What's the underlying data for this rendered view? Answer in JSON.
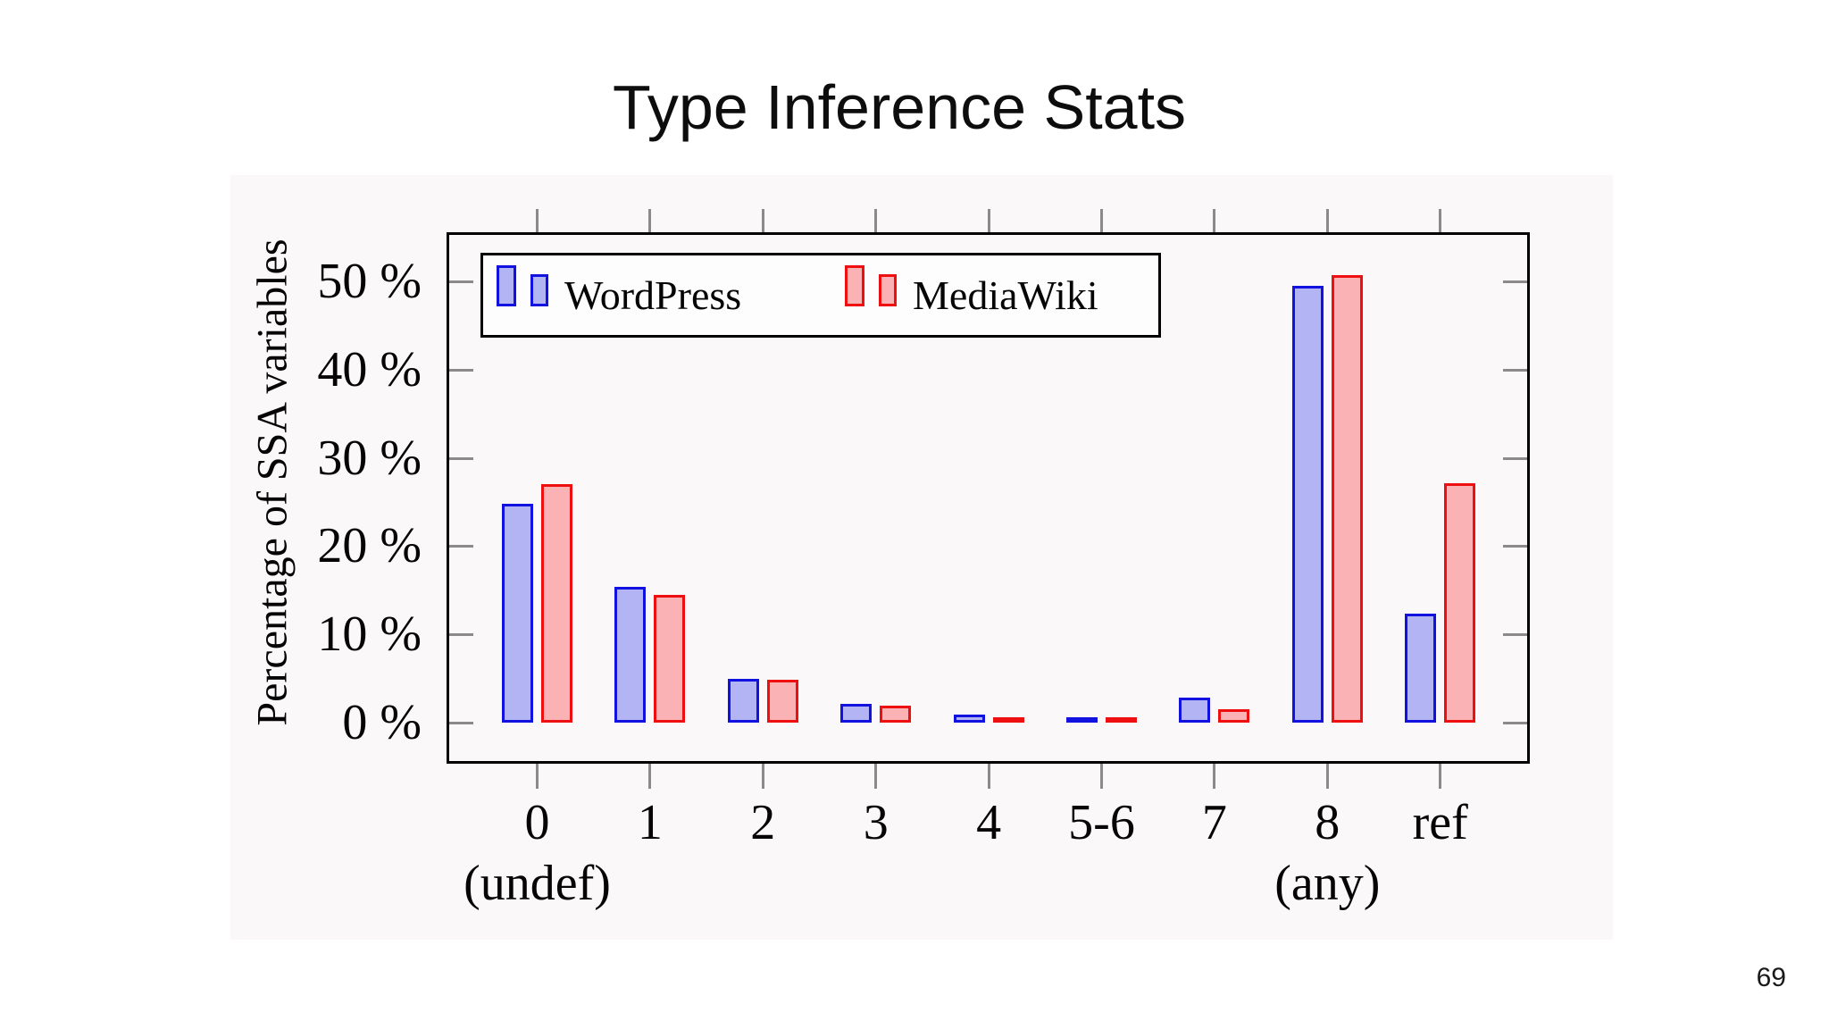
{
  "slide": {
    "title": "Type Inference Stats",
    "page_number": "69"
  },
  "chart_data": {
    "type": "bar",
    "title": "Type Inference Stats",
    "xlabel": "",
    "ylabel": "Percentage of SSA variables",
    "categories": [
      "0",
      "1",
      "2",
      "3",
      "4",
      "5-6",
      "7",
      "8",
      "ref"
    ],
    "category_sublabels": [
      "(undef)",
      "",
      "",
      "",
      "",
      "",
      "",
      "(any)",
      ""
    ],
    "series": [
      {
        "name": "WordPress",
        "fill_color": "#b3b4f4",
        "border_color": "#1212e0",
        "values": [
          24.8,
          15.4,
          5.0,
          2.1,
          0.9,
          0.45,
          2.8,
          49.5,
          12.4
        ]
      },
      {
        "name": "MediaWiki",
        "fill_color": "#fbb2b4",
        "border_color": "#ee1011",
        "values": [
          27.0,
          14.5,
          4.9,
          1.9,
          0.5,
          0.3,
          1.5,
          50.7,
          27.1
        ]
      }
    ],
    "yticks": [
      0,
      10,
      20,
      30,
      40,
      50
    ],
    "ytick_labels": [
      "0 %",
      "10 %",
      "20 %",
      "30 %",
      "40 %",
      "50 %"
    ],
    "ylim": [
      -4.7,
      55.6
    ],
    "grid": false,
    "legend_position": "top-left-inside"
  }
}
